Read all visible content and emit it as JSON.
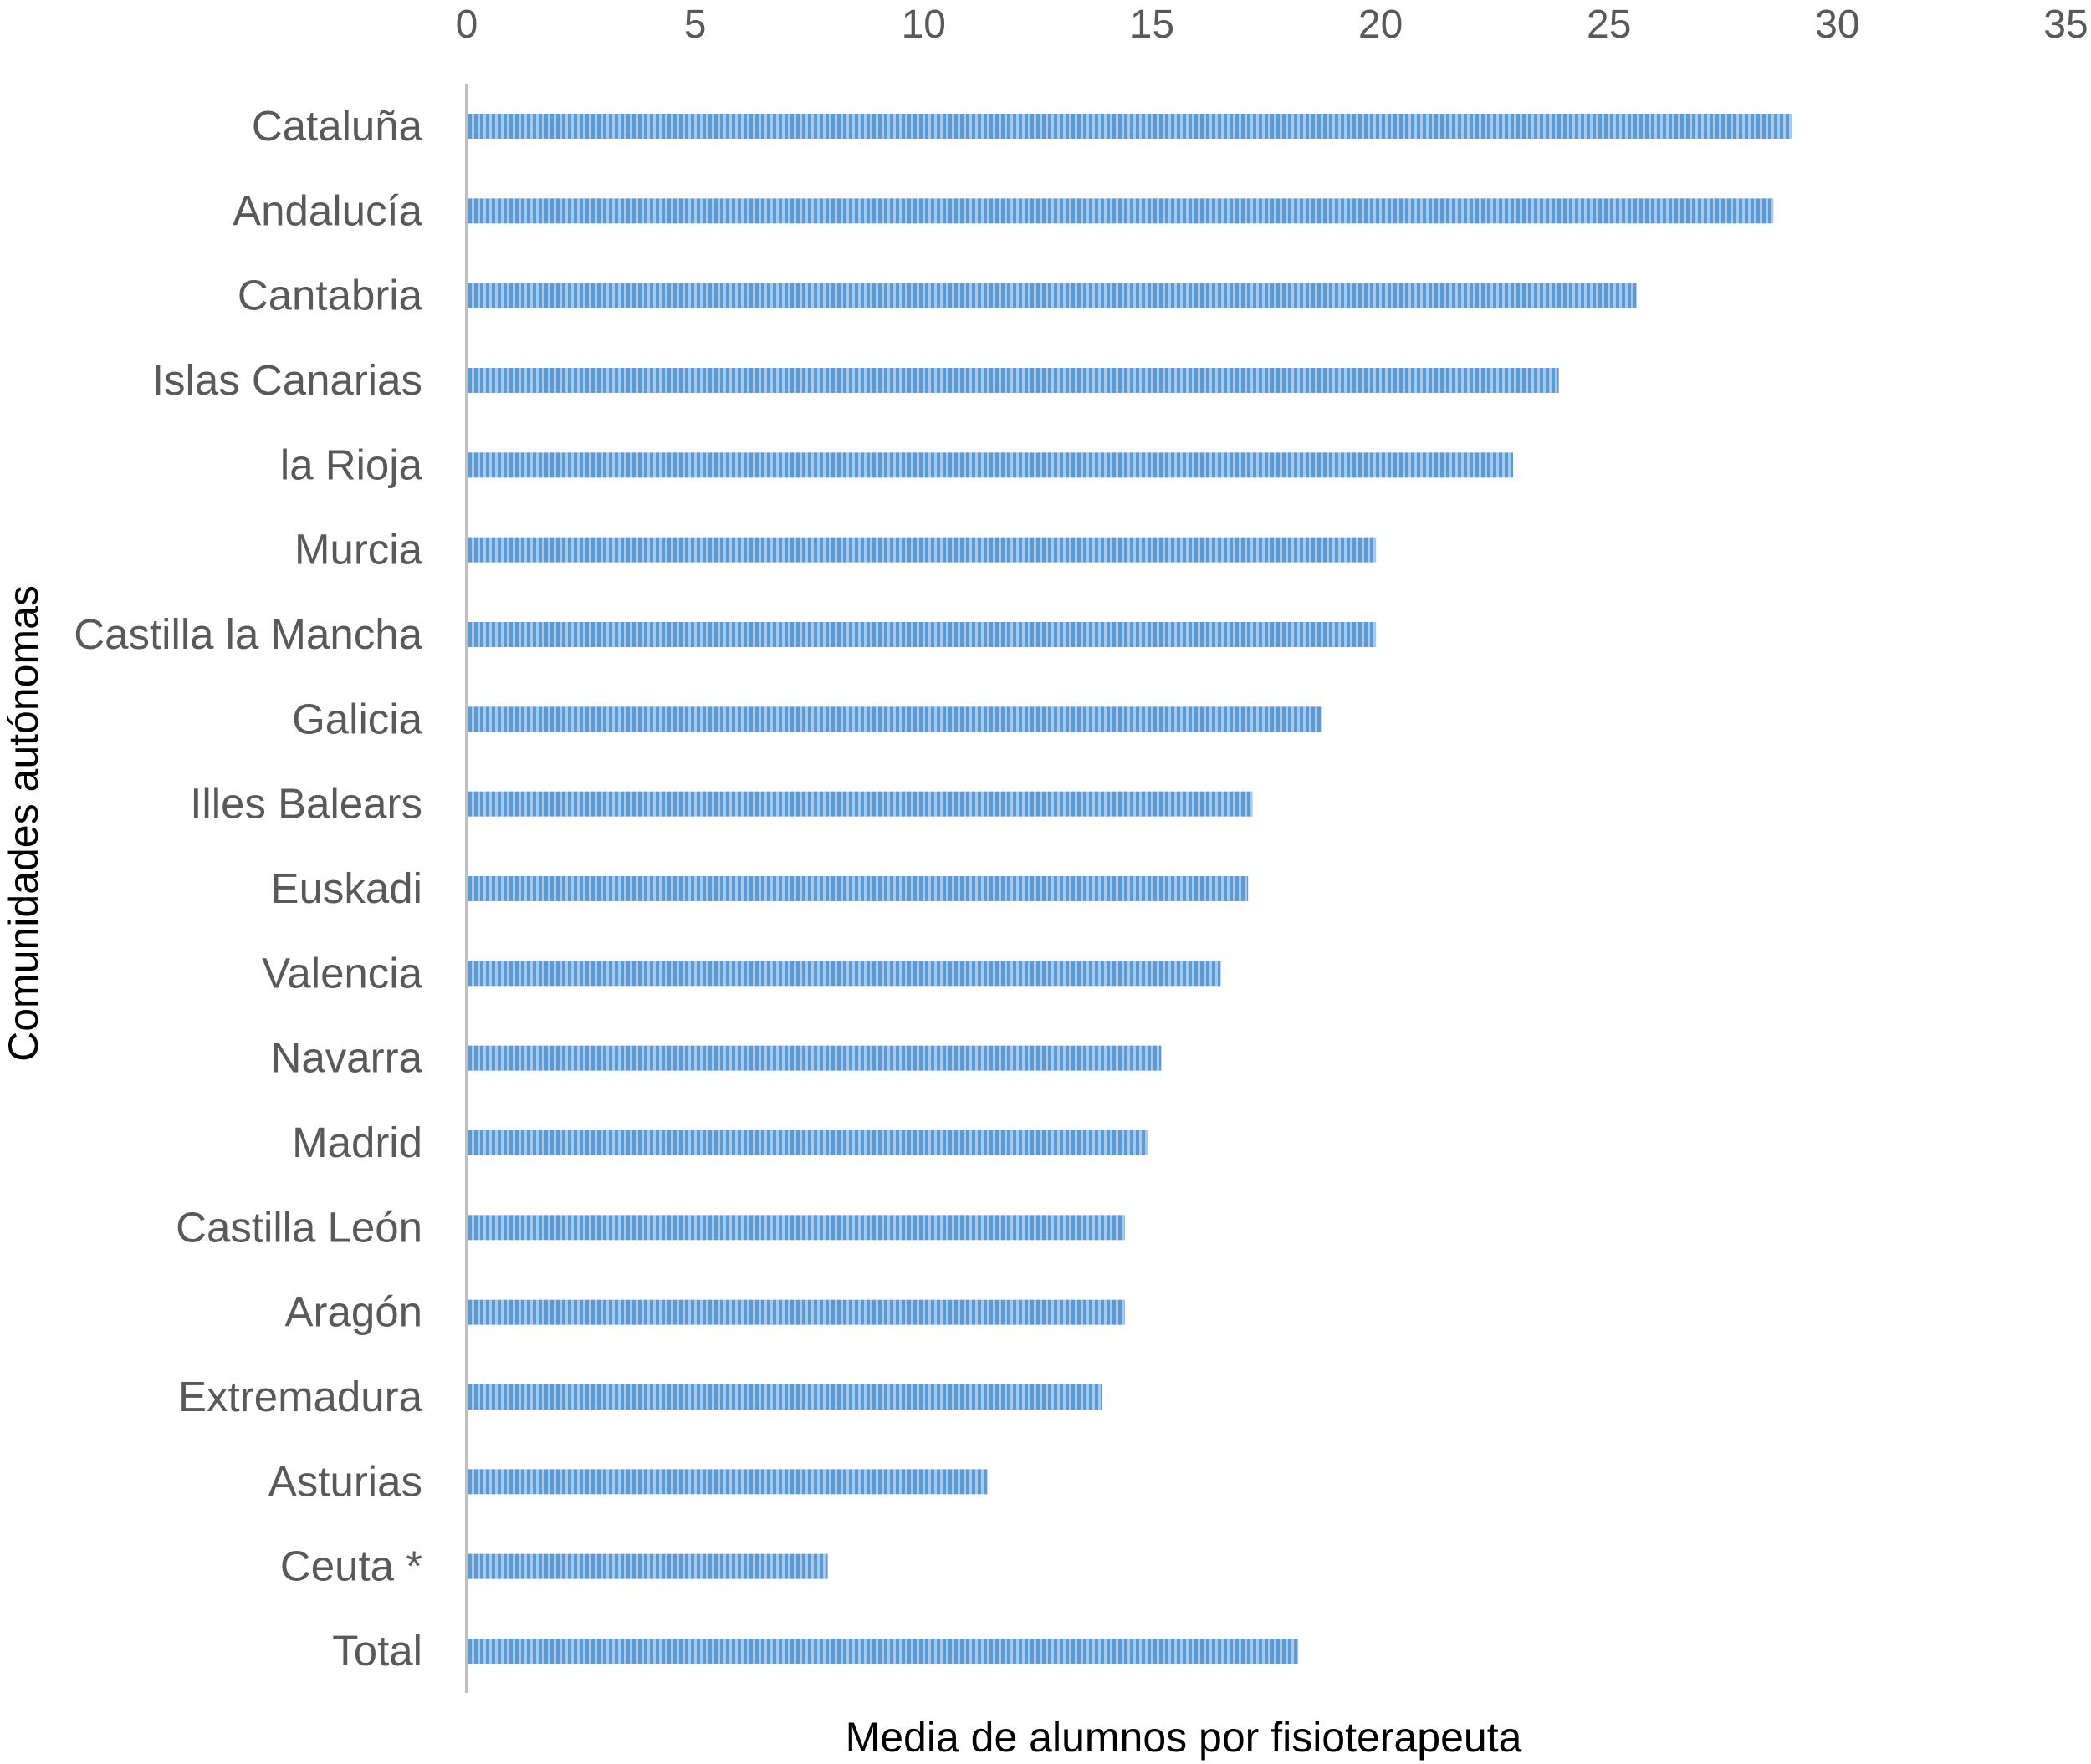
{
  "chart_data": {
    "type": "bar",
    "orientation": "horizontal",
    "title": "",
    "xlabel": "Media de alumnos por fisioterapeuta",
    "ylabel": "Comunidades autónomas",
    "xlim": [
      0,
      35
    ],
    "x_ticks": [
      "0",
      "5",
      "10",
      "15",
      "20",
      "25",
      "30",
      "35"
    ],
    "x_axis_position": "top",
    "grid": false,
    "legend": "none",
    "bar_color": "#5b9bd5",
    "bar_pattern": "vertical-stripes",
    "categories": [
      "Cataluña",
      "Andalucía",
      "Cantabria",
      "Islas Canarias",
      "la Rioja",
      "Murcia",
      "Castilla la Mancha",
      "Galicia",
      "Illes Balears",
      "Euskadi",
      "Valencia",
      "Navarra",
      "Madrid",
      "Castilla León",
      "Aragón",
      "Extremadura",
      "Asturias",
      "Ceuta *",
      "Total"
    ],
    "values": [
      29.0,
      28.6,
      25.6,
      23.9,
      22.9,
      19.9,
      19.9,
      18.7,
      17.2,
      17.1,
      16.5,
      15.2,
      14.9,
      14.4,
      14.4,
      13.9,
      11.4,
      7.9,
      18.2
    ]
  }
}
